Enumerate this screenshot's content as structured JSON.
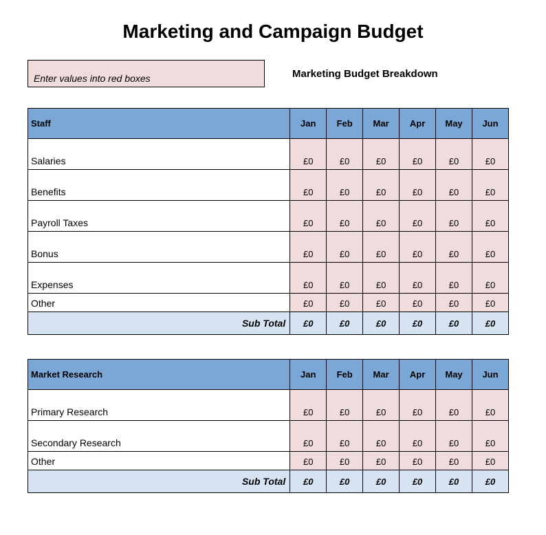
{
  "title": "Marketing and Campaign Budget",
  "hint": "Enter values into red boxes",
  "subtitle": "Marketing Budget Breakdown",
  "months": [
    "Jan",
    "Feb",
    "Mar",
    "Apr",
    "May",
    "Jun"
  ],
  "currency_prefix": "£",
  "subtotal_label": "Sub Total",
  "colors": {
    "header_bg": "#7ba7d7",
    "input_bg": "#f0dcdc",
    "subtotal_bg": "#d5e3f3",
    "border": "#000000",
    "page_bg": "#ffffff"
  },
  "fonts": {
    "title_size_pt": 21,
    "title_weight": "900",
    "header_size_pt": 10,
    "body_size_pt": 10
  },
  "sections": [
    {
      "name": "Staff",
      "rows": [
        {
          "label": "Salaries",
          "values": [
            0,
            0,
            0,
            0,
            0,
            0
          ],
          "short": false
        },
        {
          "label": "Benefits",
          "values": [
            0,
            0,
            0,
            0,
            0,
            0
          ],
          "short": false
        },
        {
          "label": "Payroll Taxes",
          "values": [
            0,
            0,
            0,
            0,
            0,
            0
          ],
          "short": false
        },
        {
          "label": "Bonus",
          "values": [
            0,
            0,
            0,
            0,
            0,
            0
          ],
          "short": false
        },
        {
          "label": "Expenses",
          "values": [
            0,
            0,
            0,
            0,
            0,
            0
          ],
          "short": false
        },
        {
          "label": "Other",
          "values": [
            0,
            0,
            0,
            0,
            0,
            0
          ],
          "short": true
        }
      ],
      "subtotal": [
        0,
        0,
        0,
        0,
        0,
        0
      ]
    },
    {
      "name": "Market Research",
      "rows": [
        {
          "label": "Primary Research",
          "values": [
            0,
            0,
            0,
            0,
            0,
            0
          ],
          "short": false
        },
        {
          "label": "Secondary Research",
          "values": [
            0,
            0,
            0,
            0,
            0,
            0
          ],
          "short": false
        },
        {
          "label": "Other",
          "values": [
            0,
            0,
            0,
            0,
            0,
            0
          ],
          "short": true
        }
      ],
      "subtotal": [
        0,
        0,
        0,
        0,
        0,
        0
      ]
    }
  ]
}
